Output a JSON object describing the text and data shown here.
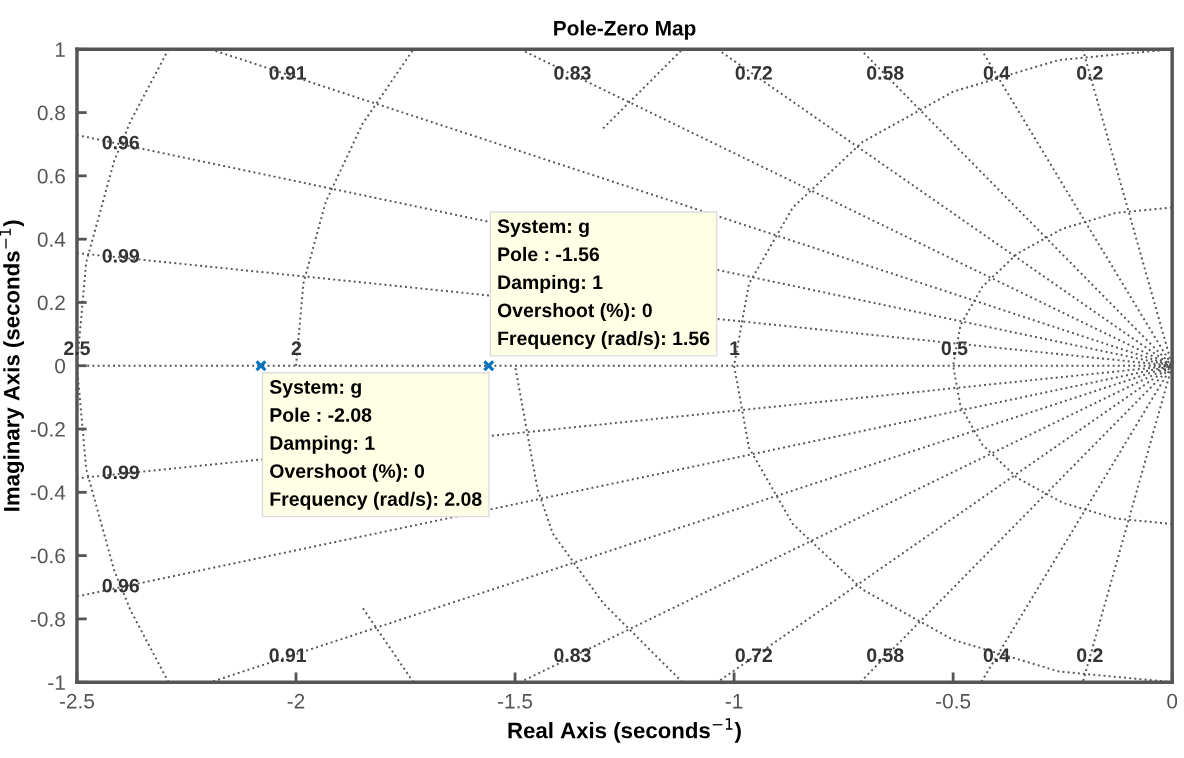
{
  "chart_data": {
    "type": "scatter",
    "title": "Pole-Zero Map",
    "xlabel": "Real Axis (seconds$^{−1}$)",
    "ylabel": "Imaginary Axis (seconds$^{−1}$)",
    "xlim": [
      -2.5,
      0
    ],
    "ylim": [
      -1,
      1
    ],
    "xticks": [
      -2.5,
      -2,
      -1.5,
      -1,
      -0.5,
      0
    ],
    "yticks": [
      -1,
      -0.8,
      -0.6,
      -0.4,
      -0.2,
      0,
      0.2,
      0.4,
      0.6,
      0.8,
      1
    ],
    "grid": false,
    "legend": false,
    "series": [
      {
        "type": "line",
        "line_style": "dotted",
        "marker": "none",
        "color": "#555555",
        "x": [
          -2.5,
          0
        ],
        "values": [
          0,
          0
        ]
      },
      {
        "type": "line",
        "line_style": "dotted",
        "marker": "none",
        "color": "#555555",
        "x": [
          -0.204,
          0,
          -0.204
        ],
        "values": [
          1,
          0,
          -1
        ]
      },
      {
        "type": "line",
        "line_style": "dotted",
        "marker": "none",
        "color": "#555555",
        "x": [
          -0.436,
          0,
          -0.436
        ],
        "values": [
          1,
          0,
          -1
        ]
      },
      {
        "type": "line",
        "line_style": "dotted",
        "marker": "none",
        "color": "#555555",
        "x": [
          -0.712,
          0,
          -0.712
        ],
        "values": [
          1,
          0,
          -1
        ]
      },
      {
        "type": "line",
        "line_style": "dotted",
        "marker": "none",
        "color": "#555555",
        "x": [
          -1.038,
          0,
          -1.038
        ],
        "values": [
          1,
          0,
          -1
        ]
      },
      {
        "type": "line",
        "line_style": "dotted",
        "marker": "none",
        "color": "#555555",
        "x": [
          -1.488,
          0,
          -1.488
        ],
        "values": [
          1,
          0,
          -1
        ]
      },
      {
        "type": "line",
        "line_style": "dotted",
        "marker": "none",
        "color": "#555555",
        "x": [
          -2.195,
          0,
          -2.195
        ],
        "values": [
          1,
          0,
          -1
        ]
      },
      {
        "type": "line",
        "line_style": "dotted",
        "marker": "none",
        "color": "#555555",
        "x": [
          -2.5,
          0,
          -2.5
        ],
        "values": [
          0.729,
          0,
          -0.729
        ]
      },
      {
        "type": "line",
        "line_style": "dotted",
        "marker": "none",
        "color": "#555555",
        "x": [
          -2.5,
          0,
          -2.5
        ],
        "values": [
          0.356,
          0,
          -0.356
        ]
      },
      {
        "type": "line",
        "line_style": "dotted",
        "marker": "none",
        "color": "#555555",
        "x": [
          0,
          -0.129,
          -0.25,
          -0.354,
          -0.433,
          -0.483,
          -0.5,
          -0.483,
          -0.433,
          -0.354,
          -0.25,
          -0.129,
          0
        ],
        "values": [
          -0.5,
          -0.483,
          -0.433,
          -0.354,
          -0.25,
          -0.129,
          0,
          0.129,
          0.25,
          0.354,
          0.433,
          0.483,
          0.5
        ]
      },
      {
        "type": "line",
        "line_style": "dotted",
        "marker": "none",
        "color": "#555555",
        "x": [
          0,
          -0.259,
          -0.5,
          -0.707,
          -0.866,
          -0.966,
          -1,
          -0.966,
          -0.866,
          -0.707,
          -0.5,
          -0.259,
          0
        ],
        "values": [
          -1,
          -0.966,
          -0.866,
          -0.707,
          -0.5,
          -0.259,
          0,
          0.259,
          0.5,
          0.707,
          0.866,
          0.966,
          1
        ]
      },
      {
        "type": "line",
        "line_style": "dotted",
        "marker": "none",
        "color": "#555555",
        "x": [
          -1.118,
          -1.299,
          -1.414,
          -1.449,
          -1.5,
          -1.449,
          -1.414,
          -1.299,
          -1.118
        ],
        "values": [
          -1,
          -0.75,
          -0.53,
          -0.388,
          0,
          null,
          null,
          0.75,
          1
        ]
      },
      {
        "type": "line",
        "line_style": "dotted",
        "marker": "none",
        "color": "#555555",
        "x": [
          -1.732,
          -1.848,
          -1.932,
          -1.983,
          -2,
          -1.983,
          -1.932,
          -1.848,
          -1.732
        ],
        "values": [
          -1,
          -0.765,
          null,
          null,
          0,
          0.261,
          0.518,
          0.765,
          1
        ]
      },
      {
        "type": "line",
        "line_style": "dotted",
        "marker": "none",
        "color": "#555555",
        "x": [
          -2.291,
          -2.378,
          -2.415,
          -2.479,
          -2.5,
          -2.479,
          -2.415,
          -2.378,
          -2.291
        ],
        "values": [
          -1,
          -0.772,
          -0.647,
          -0.326,
          0,
          0.326,
          0.647,
          0.772,
          1
        ]
      },
      {
        "marker": "cross",
        "color": "#0072bd",
        "x": [
          -2.08,
          -1.56
        ],
        "values": [
          0,
          0
        ]
      }
    ],
    "annotations": [
      {
        "text": "System: g\nPole : -2.08\nDamping: 1\nOvershoot (%): 0\nFrequency (rad/s): 2.08",
        "x": -2.08,
        "y": 0
      },
      {
        "text": "System: g\nPole : -1.56\nDamping: 1\nOvershoot (%): 0\nFrequency (rad/s): 1.56",
        "x": -1.56,
        "y": 0
      },
      {
        "text": "0.91",
        "x": -2.019,
        "y": 0.92
      },
      {
        "text": "0.83",
        "x": -1.369,
        "y": 0.92
      },
      {
        "text": "0.72",
        "x": -0.955,
        "y": 0.92
      },
      {
        "text": "0.58",
        "x": -0.655,
        "y": 0.92
      },
      {
        "text": "0.4",
        "x": -0.401,
        "y": 0.92
      },
      {
        "text": "0.2",
        "x": -0.188,
        "y": 0.92
      },
      {
        "text": "0.96",
        "x": -2.4,
        "y": 0.7
      },
      {
        "text": "0.99",
        "x": -2.4,
        "y": 0.342
      },
      {
        "text": "0.99",
        "x": -2.4,
        "y": -0.342
      },
      {
        "text": "0.96",
        "x": -2.4,
        "y": -0.7
      },
      {
        "text": "0.91",
        "x": -2.019,
        "y": -0.92
      },
      {
        "text": "0.83",
        "x": -1.369,
        "y": -0.92
      },
      {
        "text": "0.72",
        "x": -0.955,
        "y": -0.92
      },
      {
        "text": "0.58",
        "x": -0.655,
        "y": -0.92
      },
      {
        "text": "0.4",
        "x": -0.401,
        "y": -0.92
      },
      {
        "text": "0.2",
        "x": -0.188,
        "y": -0.92
      },
      {
        "text": "2.5",
        "x": -2.5,
        "y": 0.05
      },
      {
        "text": "2",
        "x": -1.999,
        "y": 0.05
      },
      {
        "text": "1",
        "x": -0.999,
        "y": 0.05
      },
      {
        "text": "0.5",
        "x": -0.497,
        "y": 0.05
      }
    ]
  }
}
